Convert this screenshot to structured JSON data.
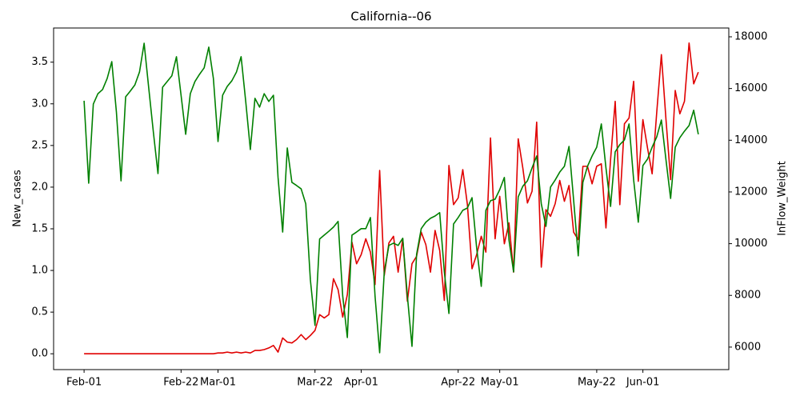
{
  "chart_data": {
    "type": "line",
    "title": "California--06",
    "ylabel": "New_cases",
    "y2label": "InFlow_Weight",
    "categories": [
      "Feb-01",
      null,
      null,
      null,
      null,
      null,
      null,
      null,
      null,
      null,
      null,
      null,
      null,
      null,
      null,
      null,
      null,
      null,
      null,
      null,
      null,
      "Feb-22",
      null,
      null,
      null,
      null,
      null,
      null,
      null,
      "Mar-01",
      null,
      null,
      null,
      null,
      null,
      null,
      null,
      null,
      null,
      null,
      null,
      null,
      null,
      null,
      null,
      null,
      null,
      null,
      null,
      null,
      "Mar-22",
      null,
      null,
      null,
      null,
      null,
      null,
      null,
      null,
      null,
      "Apr-01",
      null,
      null,
      null,
      null,
      null,
      null,
      null,
      null,
      null,
      null,
      null,
      null,
      null,
      null,
      null,
      null,
      null,
      null,
      null,
      null,
      "Apr-22",
      null,
      null,
      null,
      null,
      null,
      null,
      null,
      null,
      "May-01",
      null,
      null,
      null,
      null,
      null,
      null,
      null,
      null,
      null,
      null,
      null,
      null,
      null,
      null,
      null,
      null,
      null,
      null,
      null,
      null,
      "May-22",
      null,
      null,
      null,
      null,
      null,
      null,
      null,
      null,
      null,
      "Jun-01",
      null,
      null,
      null,
      null,
      null,
      null,
      null,
      null,
      null,
      null,
      null,
      null
    ],
    "series": [
      {
        "color": "#e00000",
        "values": [
          0,
          0,
          0,
          0,
          0,
          0,
          0,
          0,
          0,
          0,
          0,
          0,
          0,
          0,
          0,
          0,
          0,
          0,
          0,
          0,
          0,
          0,
          0,
          0,
          0,
          0,
          0,
          0,
          0,
          0.01,
          0.01,
          0.02,
          0.01,
          0.02,
          0.01,
          0.02,
          0.01,
          0.04,
          0.04,
          0.05,
          0.07,
          0.1,
          0.02,
          0.19,
          0.14,
          0.13,
          0.17,
          0.23,
          0.17,
          0.22,
          0.28,
          0.47,
          0.43,
          0.47,
          0.9,
          0.77,
          0.44,
          0.71,
          1.34,
          1.08,
          1.19,
          1.38,
          1.22,
          0.83,
          2.2,
          0.94,
          1.33,
          1.41,
          0.98,
          1.38,
          0.63,
          1.08,
          1.17,
          1.46,
          1.31,
          0.98,
          1.48,
          1.24,
          0.64,
          2.26,
          1.79,
          1.87,
          2.21,
          1.79,
          1.02,
          1.19,
          1.41,
          1.22,
          2.59,
          1.38,
          1.89,
          1.32,
          1.57,
          0.98,
          2.58,
          2.23,
          1.81,
          1.95,
          2.78,
          1.04,
          1.73,
          1.65,
          1.8,
          2.08,
          1.83,
          2.02,
          1.46,
          1.37,
          2.25,
          2.25,
          2.04,
          2.25,
          2.28,
          1.51,
          2.33,
          3.03,
          1.79,
          2.76,
          2.83,
          3.27,
          2.07,
          2.81,
          2.47,
          2.16,
          2.9,
          3.59,
          2.81,
          2.09,
          3.16,
          2.88,
          3.03,
          3.73,
          3.24,
          3.38
        ]
      },
      {
        "color": "#008000",
        "axis": "y2",
        "values": [
          15527,
          12340,
          15400,
          15800,
          15960,
          16390,
          17040,
          15090,
          12430,
          15680,
          15900,
          16140,
          16640,
          17750,
          16020,
          14320,
          12710,
          16050,
          16270,
          16490,
          17230,
          15740,
          14230,
          15800,
          16270,
          16550,
          16800,
          17600,
          16390,
          13950,
          15740,
          16080,
          16300,
          16640,
          17230,
          15500,
          13640,
          15620,
          15280,
          15800,
          15500,
          15740,
          12560,
          10450,
          13700,
          12370,
          12250,
          12120,
          11540,
          8600,
          6840,
          10180,
          10330,
          10480,
          10640,
          10860,
          7980,
          6370,
          10330,
          10450,
          10580,
          10580,
          11010,
          7980,
          5780,
          8910,
          9930,
          10020,
          9930,
          10210,
          7980,
          6030,
          9590,
          10580,
          10830,
          10980,
          11070,
          11200,
          8910,
          7300,
          10760,
          11010,
          11290,
          11380,
          11780,
          9840,
          8350,
          11290,
          11660,
          11720,
          12090,
          12560,
          10140,
          8910,
          11810,
          12220,
          12430,
          12930,
          13390,
          11540,
          10670,
          12190,
          12460,
          12770,
          12990,
          13760,
          11690,
          9530,
          12370,
          12990,
          13390,
          13730,
          14630,
          12930,
          11440,
          13550,
          13830,
          14010,
          14630,
          12460,
          10830,
          13020,
          13270,
          13730,
          14130,
          14780,
          13240,
          11750,
          13730,
          14100,
          14350,
          14570,
          15160,
          14230
        ]
      }
    ],
    "ylim": [
      -0.19,
      3.91
    ],
    "yticks": [
      {
        "value": 0,
        "label": "0.0"
      },
      {
        "value": 0.5,
        "label": "0.5"
      },
      {
        "value": 1,
        "label": "1.0"
      },
      {
        "value": 1.5,
        "label": "1.5"
      },
      {
        "value": 2,
        "label": "2.0"
      },
      {
        "value": 2.5,
        "label": "2.5"
      },
      {
        "value": 3,
        "label": "3.0"
      },
      {
        "value": 3.5,
        "label": "3.5"
      }
    ],
    "y2lim": [
      5130,
      18340
    ],
    "y2ticks": [
      6000,
      8000,
      10000,
      12000,
      14000,
      16000,
      18000
    ]
  }
}
